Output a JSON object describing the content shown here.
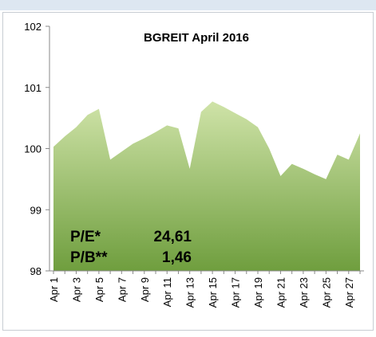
{
  "chart_data": {
    "type": "area",
    "title": "BGREIT April 2016",
    "categories": [
      "Apr 1",
      null,
      "Apr 3",
      null,
      "Apr 5",
      null,
      "Apr 7",
      null,
      "Apr 9",
      null,
      "Apr 11",
      null,
      "Apr 13",
      null,
      "Apr 15",
      null,
      "Apr 17",
      null,
      "Apr 19",
      null,
      "Apr 21",
      null,
      "Apr 23",
      null,
      "Apr 25",
      null,
      "Apr 27",
      null
    ],
    "values": [
      100.03,
      100.2,
      100.35,
      100.55,
      100.65,
      99.82,
      99.95,
      100.08,
      100.17,
      100.27,
      100.38,
      100.33,
      99.67,
      100.6,
      100.77,
      100.68,
      100.58,
      100.48,
      100.35,
      100.0,
      99.55,
      99.75,
      99.67,
      99.58,
      99.5,
      99.9,
      99.82,
      100.25
    ],
    "color": "#8fb85a",
    "ylim": [
      98,
      102
    ],
    "yticks": [
      98,
      99,
      100,
      101,
      102
    ],
    "annotations": [
      {
        "label": "P/E*",
        "value": "24,61"
      },
      {
        "label": "P/B**",
        "value": "1,46"
      }
    ]
  }
}
